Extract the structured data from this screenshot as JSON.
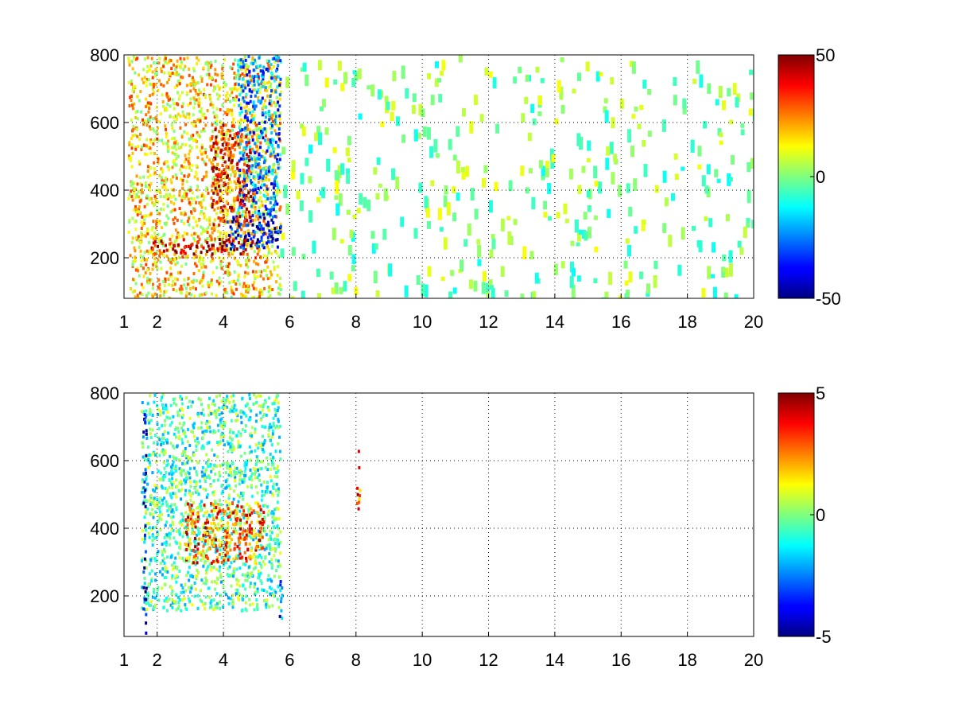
{
  "chart_data": [
    {
      "type": "heatmap",
      "title": "",
      "xlabel": "",
      "ylabel": "",
      "xlim": [
        1,
        20
      ],
      "ylim": [
        80,
        800
      ],
      "x_ticks": [
        1,
        2,
        4,
        6,
        8,
        10,
        12,
        14,
        16,
        18,
        20
      ],
      "y_ticks": [
        200,
        400,
        600,
        800
      ],
      "grid": true,
      "colormap": "jet",
      "colorbar": {
        "range": [
          -50,
          50
        ],
        "ticks": [
          -50,
          0,
          50
        ],
        "placement": "right"
      },
      "regions": [
        {
          "x": [
            1.1,
            5.7
          ],
          "y": [
            80,
            800
          ],
          "value": 15,
          "description_value": "dense mostly positive band"
        },
        {
          "x": [
            1.8,
            5.0
          ],
          "y": [
            215,
            260
          ],
          "value": 45,
          "description_value": "strong positive ridge"
        },
        {
          "x": [
            4.0,
            5.7
          ],
          "y": [
            230,
            330
          ],
          "value": -40,
          "description_value": "strong negative ridge"
        },
        {
          "x": [
            4.4,
            5.7
          ],
          "y": [
            330,
            800
          ],
          "value": -25,
          "description_value": "negative curve"
        },
        {
          "x": [
            3.6,
            4.8
          ],
          "y": [
            300,
            600
          ],
          "value": 35,
          "description_value": "positive curve"
        },
        {
          "x": [
            5.7,
            20
          ],
          "y": [
            80,
            800
          ],
          "value": 0,
          "description_value": "sparse near-zero columns"
        }
      ]
    },
    {
      "type": "heatmap",
      "title": "",
      "xlabel": "",
      "ylabel": "",
      "xlim": [
        1,
        20
      ],
      "ylim": [
        80,
        800
      ],
      "x_ticks": [
        1,
        2,
        4,
        6,
        8,
        10,
        12,
        14,
        16,
        18,
        20
      ],
      "y_ticks": [
        200,
        400,
        600,
        800
      ],
      "grid": true,
      "colormap": "jet",
      "colorbar": {
        "range": [
          -5,
          5
        ],
        "ticks": [
          -5,
          0,
          5
        ],
        "placement": "right"
      },
      "regions": [
        {
          "x": [
            1.5,
            5.7
          ],
          "y": [
            160,
            800
          ],
          "value": -0.5,
          "description_value": "mostly near-zero cloud"
        },
        {
          "x": [
            2.8,
            5.2
          ],
          "y": [
            300,
            480
          ],
          "value": 3,
          "description_value": "positive speckle cluster"
        },
        {
          "x": [
            8.0,
            8.0
          ],
          "y": [
            460,
            640
          ],
          "value": 3,
          "description_value": "isolated positive column"
        },
        {
          "x": [
            1.55,
            1.55
          ],
          "y": [
            80,
            750
          ],
          "value": -4,
          "description_value": "negative vertical line"
        },
        {
          "x": [
            5.65,
            5.65
          ],
          "y": [
            80,
            250
          ],
          "value": -3,
          "description_value": "mixed vertical line"
        }
      ]
    }
  ]
}
